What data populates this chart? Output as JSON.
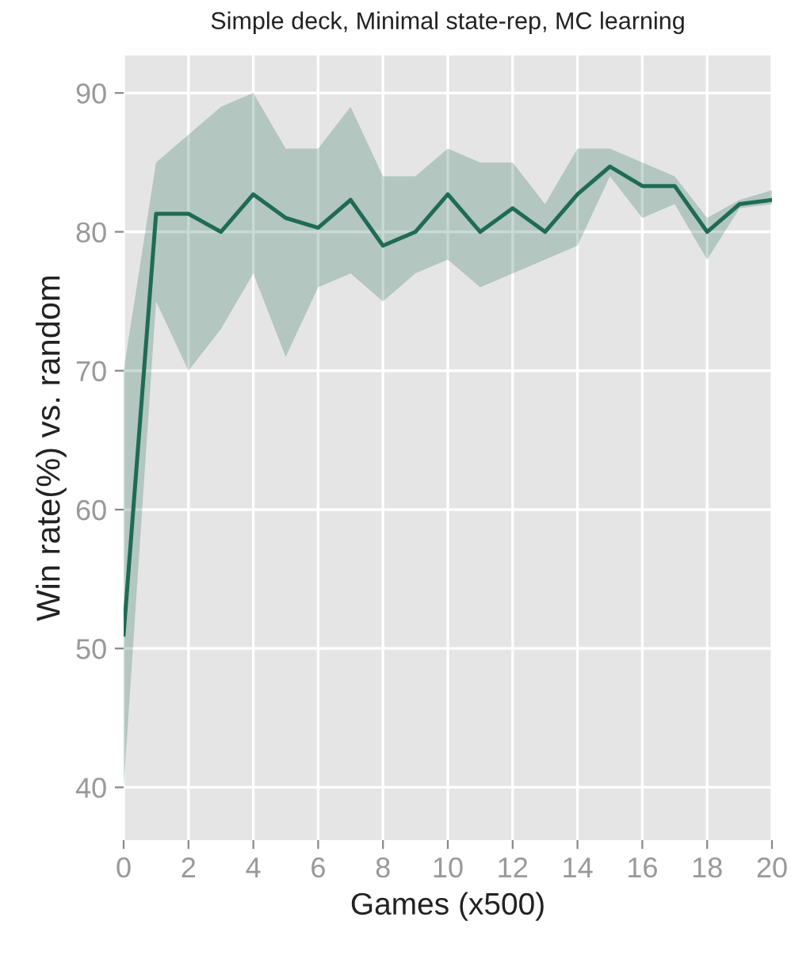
{
  "chart_data": {
    "type": "line",
    "title": "Simple deck, Minimal state-rep, MC learning",
    "xlabel": "Games (x500)",
    "ylabel": "Win rate(%) vs. random",
    "x": [
      0,
      1,
      2,
      3,
      4,
      5,
      6,
      7,
      8,
      9,
      10,
      11,
      12,
      13,
      14,
      15,
      16,
      17,
      18,
      19,
      20
    ],
    "series": [
      {
        "color": "#1f6b55",
        "values": [
          51,
          81.3,
          81.3,
          80,
          82.7,
          81,
          80.3,
          82.3,
          79,
          80,
          82.7,
          80,
          81.7,
          80,
          82.7,
          84.7,
          83.3,
          83.3,
          80,
          82,
          82.3
        ],
        "lower": [
          40,
          75,
          70,
          73,
          77,
          71,
          76,
          77,
          75,
          77,
          78,
          76,
          77,
          78,
          79,
          84,
          81,
          82,
          78,
          81.7,
          82
        ],
        "upper": [
          70,
          85,
          87,
          89,
          90,
          86,
          86,
          89,
          84,
          84,
          86,
          85,
          85,
          82,
          86,
          86,
          85,
          84,
          81,
          82.3,
          83
        ]
      }
    ],
    "xlim": [
      0,
      20
    ],
    "ylim": [
      36.2,
      92.7
    ],
    "xticks": [
      0,
      2,
      4,
      6,
      8,
      10,
      12,
      14,
      16,
      18,
      20
    ],
    "yticks": [
      40,
      50,
      60,
      70,
      80,
      90
    ],
    "grid": true,
    "legend": false,
    "line_style": "solid",
    "marker": "none"
  }
}
